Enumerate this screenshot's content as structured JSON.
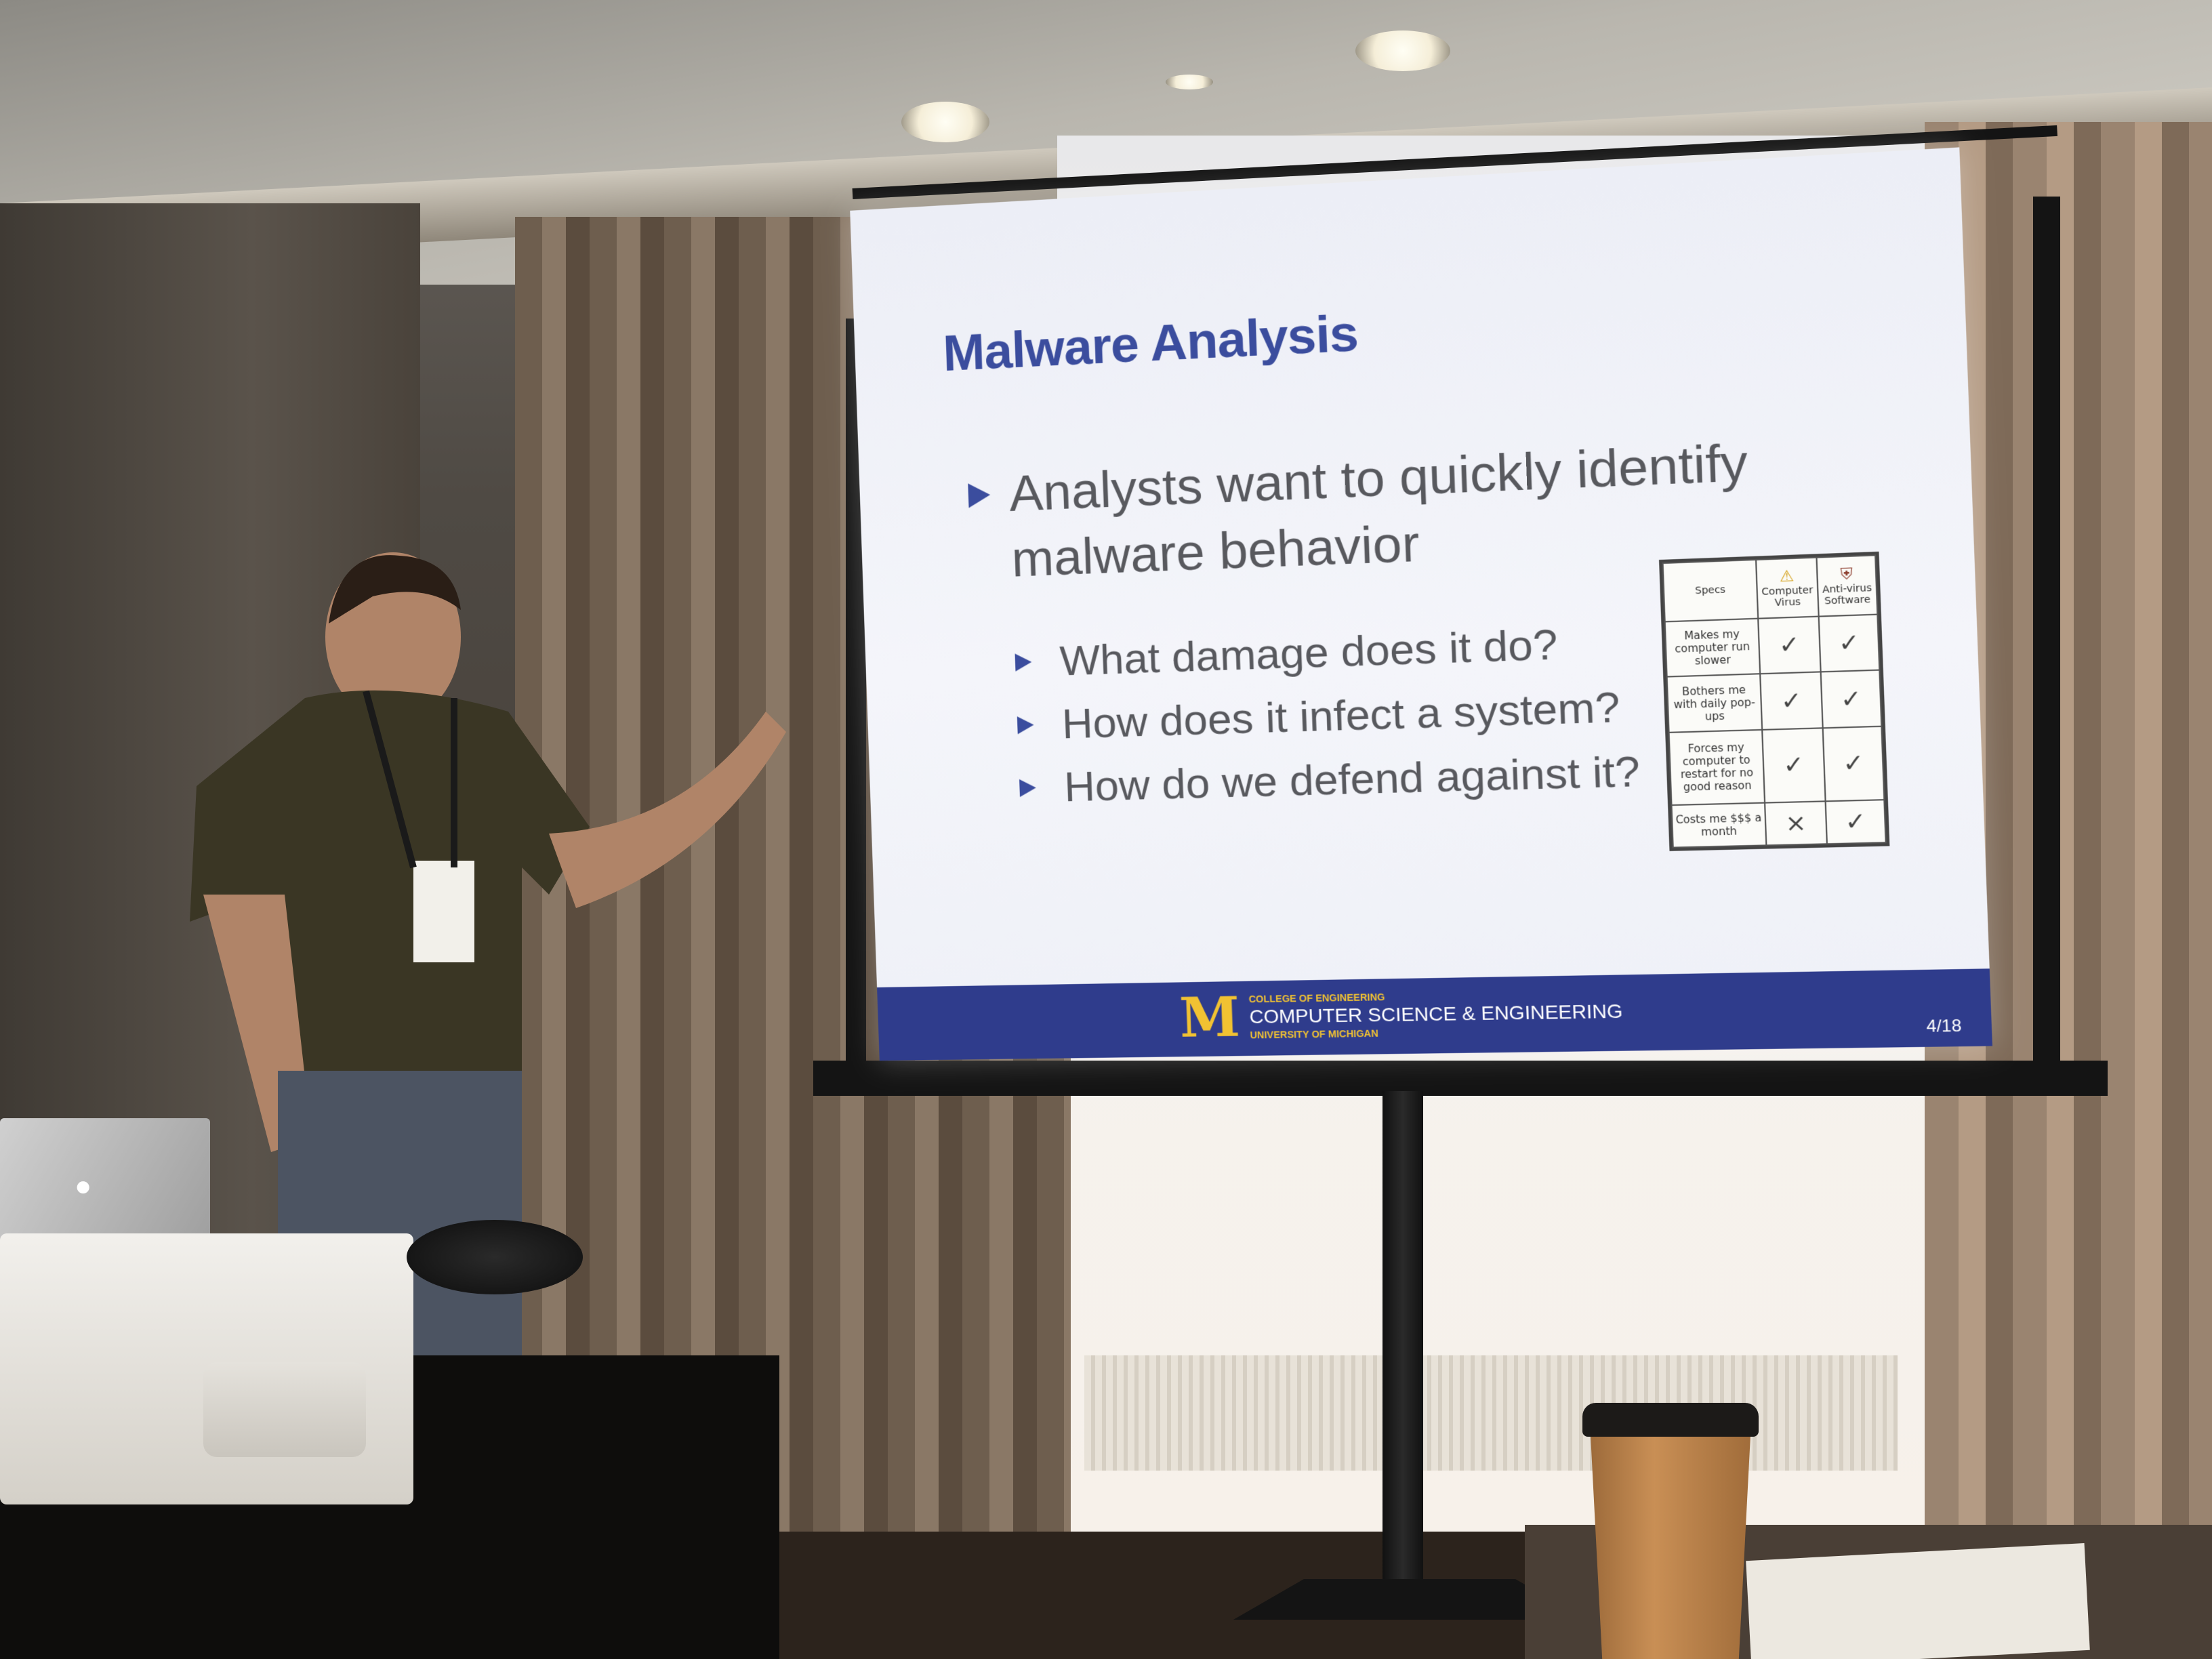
{
  "slide": {
    "title": "Malware Analysis",
    "bullets": [
      {
        "text": "Analysts want to quickly identify malware behavior",
        "sub_bullets": [
          "What damage does it do?",
          "How does it infect a system?",
          "How do we defend against it?"
        ]
      }
    ],
    "comic_table": {
      "headers": [
        "Specs",
        "Computer Virus",
        "Anti-virus Software"
      ],
      "rows": [
        [
          "Makes my computer run slower",
          "✓",
          "✓"
        ],
        [
          "Bothers me with daily pop-ups",
          "✓",
          "✓"
        ],
        [
          "Forces my computer to restart for no good reason",
          "✓",
          "✓"
        ],
        [
          "Costs me $$$ a month",
          "×",
          "✓"
        ]
      ]
    },
    "footer": {
      "college": "COLLEGE OF ENGINEERING",
      "department": "COMPUTER SCIENCE & ENGINEERING",
      "university": "UNIVERSITY OF MICHIGAN",
      "logo_letter": "M",
      "page": "4/18"
    },
    "colors": {
      "title": "#3b4d9e",
      "footer_bg": "#2f3c8c",
      "logo": "#f1c232",
      "body_text": "#58595e"
    }
  },
  "scene_objects": {
    "laptop_logo_icon": "apple-icon"
  }
}
